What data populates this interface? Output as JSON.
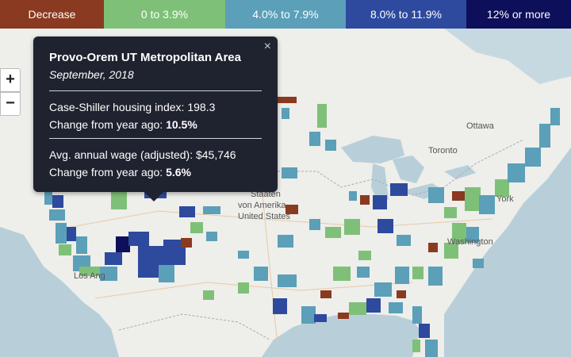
{
  "legend": [
    {
      "label": "Decrease",
      "color": "#8a3a20"
    },
    {
      "label": "0 to 3.9%",
      "color": "#7fc078"
    },
    {
      "label": "4.0% to 7.9%",
      "color": "#5b9fb8"
    },
    {
      "label": "8.0% to 11.9%",
      "color": "#2e4a9e"
    },
    {
      "label": "12% or more",
      "color": "#0d0f5a"
    }
  ],
  "zoom": {
    "in_label": "+",
    "out_label": "−"
  },
  "tooltip": {
    "close_label": "×",
    "title": "Provo-Orem UT Metropolitan Area",
    "date": "September, 2018",
    "index_label": "Case-Shiller housing index: ",
    "index_value": "198.3",
    "index_change_label": "Change from year ago: ",
    "index_change_value": "10.5%",
    "wage_label": "Avg. annual wage (adjusted): ",
    "wage_value": "$45,746",
    "wage_change_label": "Change from year ago: ",
    "wage_change_value": "5.6%"
  },
  "map_labels": {
    "ottawa": "Ottawa",
    "toronto": "Toronto",
    "staaten": "Staaten",
    "von_amerika": "von Amerika",
    "united_states": "United States",
    "york": "York",
    "washington": "Washington",
    "los_angeles_fragment": "Los Ang"
  },
  "colors": {
    "land": "#eeeeea",
    "water": "#b8cfd9",
    "tooltip_bg": "#1f2330"
  }
}
